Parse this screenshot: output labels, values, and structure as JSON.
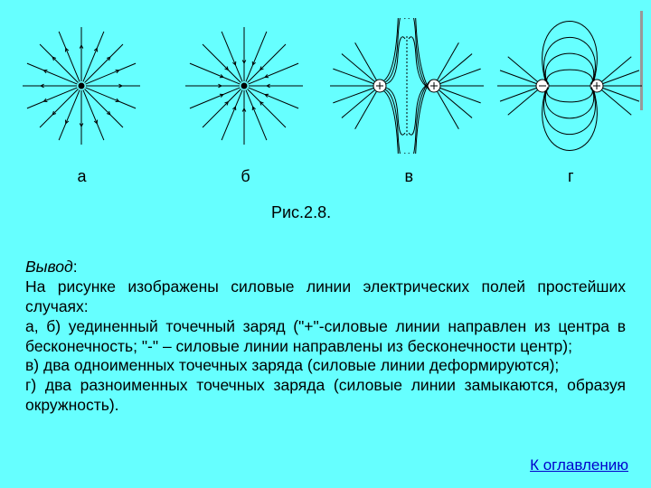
{
  "background_color": "#66ffff",
  "stroke_color": "#000000",
  "text_color": "#000000",
  "link_color": "#0000cc",
  "diagram_labels": {
    "a": "а",
    "b": "б",
    "c": "в",
    "d": "г"
  },
  "caption": "Рис.2.8.",
  "conclusion_title": "Вывод",
  "conclusion_body_1": "На рисунке изображены силовые линии электрических полей    простейших случаях:",
  "conclusion_body_2": "а, б) уединенный точечный заряд (\"+\"-силовые линии направлен   из центра в бесконечность; \"-\" – силовые линии направлены из бесконечности    центр);",
  "conclusion_body_3": "в) два одноименных точечных заряда (силовые линии деформируются);",
  "conclusion_body_4": "г) два разноименных точечных заряда (силовые линии замыкаются, образуя окружность).",
  "toc_link": "К оглавлению",
  "font_size_body": 17.5,
  "font_size_label": 18
}
